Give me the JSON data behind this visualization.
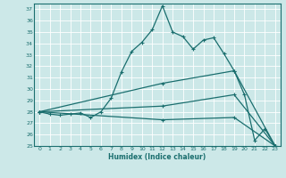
{
  "xlabel": "Humidex (Indice chaleur)",
  "xlim": [
    -0.5,
    23.5
  ],
  "ylim": [
    25,
    37.5
  ],
  "yticks": [
    25,
    26,
    27,
    28,
    29,
    30,
    31,
    32,
    33,
    34,
    35,
    36,
    37
  ],
  "xticks": [
    0,
    1,
    2,
    3,
    4,
    5,
    6,
    7,
    8,
    9,
    10,
    11,
    12,
    13,
    14,
    15,
    16,
    17,
    18,
    19,
    20,
    21,
    22,
    23
  ],
  "bg_color": "#cce8e8",
  "grid_color": "#ffffff",
  "line_color": "#1a6e6e",
  "line1": [
    [
      0,
      28.0
    ],
    [
      1,
      27.8
    ],
    [
      2,
      27.7
    ],
    [
      3,
      27.8
    ],
    [
      4,
      27.9
    ],
    [
      5,
      27.5
    ],
    [
      6,
      28.0
    ],
    [
      7,
      29.2
    ],
    [
      8,
      31.5
    ],
    [
      9,
      33.3
    ],
    [
      10,
      34.1
    ],
    [
      11,
      35.2
    ],
    [
      12,
      37.3
    ],
    [
      13,
      35.0
    ],
    [
      14,
      34.6
    ],
    [
      15,
      33.5
    ],
    [
      16,
      34.3
    ],
    [
      17,
      34.5
    ],
    [
      18,
      33.1
    ],
    [
      19,
      31.6
    ],
    [
      20,
      29.5
    ],
    [
      21,
      25.5
    ],
    [
      22,
      26.5
    ],
    [
      23,
      25.0
    ]
  ],
  "line2": [
    [
      0,
      28.0
    ],
    [
      12,
      30.5
    ],
    [
      19,
      31.6
    ],
    [
      23,
      25.0
    ]
  ],
  "line3": [
    [
      0,
      28.0
    ],
    [
      12,
      28.5
    ],
    [
      19,
      29.5
    ],
    [
      23,
      25.0
    ]
  ],
  "line4": [
    [
      0,
      28.0
    ],
    [
      12,
      27.3
    ],
    [
      19,
      27.5
    ],
    [
      23,
      25.0
    ]
  ]
}
